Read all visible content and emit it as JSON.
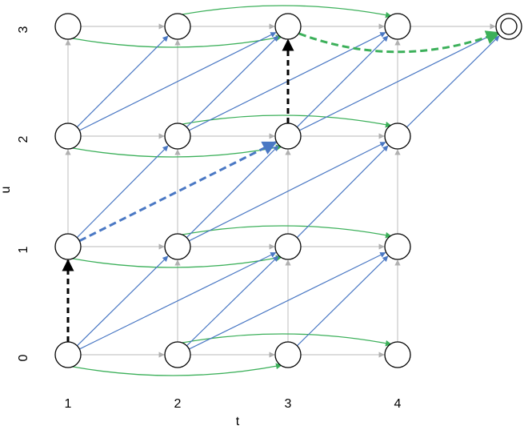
{
  "axes": {
    "x_label": "t",
    "y_label": "u",
    "x_ticks": [
      "1",
      "2",
      "3",
      "4"
    ],
    "y_ticks": [
      "0",
      "1",
      "2",
      "3"
    ]
  }
}
